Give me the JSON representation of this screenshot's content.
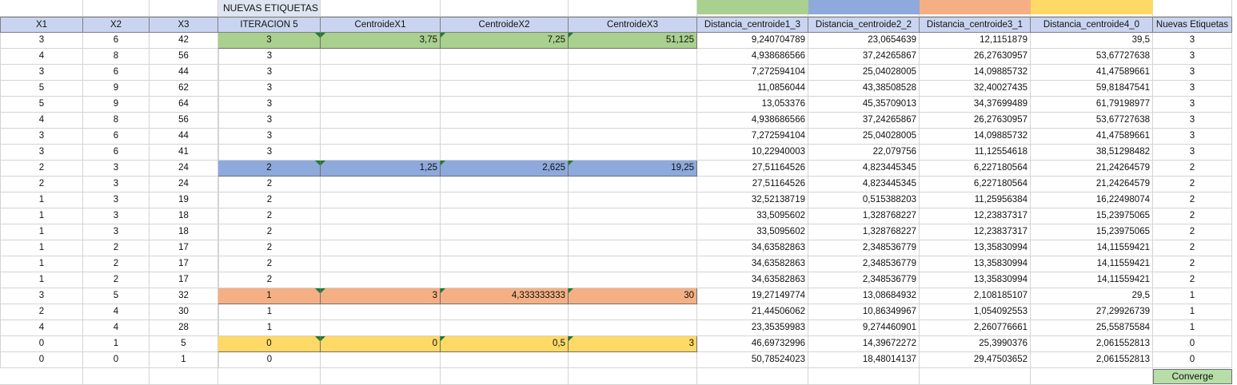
{
  "title_cell": "NUEVAS ETIQUETAS",
  "colors": {
    "cluster3": "#a9d08e",
    "cluster2": "#8ea9db",
    "cluster1": "#f4b084",
    "cluster0": "#ffd966",
    "header": "#c9d5f0",
    "converge": "#b7dea8"
  },
  "header_color_bars": [
    "#a9d08e",
    "#8ea9db",
    "#f4b084",
    "#ffd966"
  ],
  "headers": [
    "X1",
    "X2",
    "X3",
    "ITERACION 5",
    "CentroideX1",
    "CentroideX2",
    "CentroideX3",
    "Distancia_centroide1_3",
    "Distancia_centroide2_2",
    "Distancia_centroide3_1",
    "Distancia_centroide4_0",
    "Nuevas Etiquetas"
  ],
  "rows": [
    {
      "x1": "3",
      "x2": "6",
      "x3": "42",
      "iter": "3",
      "c1": "3,75",
      "c2": "7,25",
      "c3": "51,125",
      "d1": "9,240704789",
      "d2": "23,0654639",
      "d3": "12,1151879",
      "d4": "39,5",
      "label": "3",
      "hl": "cluster3"
    },
    {
      "x1": "4",
      "x2": "8",
      "x3": "56",
      "iter": "3",
      "c1": "",
      "c2": "",
      "c3": "",
      "d1": "4,938686566",
      "d2": "37,24265867",
      "d3": "26,27630957",
      "d4": "53,67727638",
      "label": "3",
      "hl": ""
    },
    {
      "x1": "3",
      "x2": "6",
      "x3": "44",
      "iter": "3",
      "c1": "",
      "c2": "",
      "c3": "",
      "d1": "7,272594104",
      "d2": "25,04028005",
      "d3": "14,09885732",
      "d4": "41,47589661",
      "label": "3",
      "hl": ""
    },
    {
      "x1": "5",
      "x2": "9",
      "x3": "62",
      "iter": "3",
      "c1": "",
      "c2": "",
      "c3": "",
      "d1": "11,0856044",
      "d2": "43,38508528",
      "d3": "32,40027435",
      "d4": "59,81847541",
      "label": "3",
      "hl": ""
    },
    {
      "x1": "5",
      "x2": "9",
      "x3": "64",
      "iter": "3",
      "c1": "",
      "c2": "",
      "c3": "",
      "d1": "13,053376",
      "d2": "45,35709013",
      "d3": "34,37699489",
      "d4": "61,79198977",
      "label": "3",
      "hl": ""
    },
    {
      "x1": "4",
      "x2": "8",
      "x3": "56",
      "iter": "3",
      "c1": "",
      "c2": "",
      "c3": "",
      "d1": "4,938686566",
      "d2": "37,24265867",
      "d3": "26,27630957",
      "d4": "53,67727638",
      "label": "3",
      "hl": ""
    },
    {
      "x1": "3",
      "x2": "6",
      "x3": "44",
      "iter": "3",
      "c1": "",
      "c2": "",
      "c3": "",
      "d1": "7,272594104",
      "d2": "25,04028005",
      "d3": "14,09885732",
      "d4": "41,47589661",
      "label": "3",
      "hl": ""
    },
    {
      "x1": "3",
      "x2": "6",
      "x3": "41",
      "iter": "3",
      "c1": "",
      "c2": "",
      "c3": "",
      "d1": "10,22940003",
      "d2": "22,079756",
      "d3": "11,12554618",
      "d4": "38,51298482",
      "label": "3",
      "hl": ""
    },
    {
      "x1": "2",
      "x2": "3",
      "x3": "24",
      "iter": "2",
      "c1": "1,25",
      "c2": "2,625",
      "c3": "19,25",
      "d1": "27,51164526",
      "d2": "4,823445345",
      "d3": "6,227180564",
      "d4": "21,24264579",
      "label": "2",
      "hl": "cluster2"
    },
    {
      "x1": "2",
      "x2": "3",
      "x3": "24",
      "iter": "2",
      "c1": "",
      "c2": "",
      "c3": "",
      "d1": "27,51164526",
      "d2": "4,823445345",
      "d3": "6,227180564",
      "d4": "21,24264579",
      "label": "2",
      "hl": ""
    },
    {
      "x1": "1",
      "x2": "3",
      "x3": "19",
      "iter": "2",
      "c1": "",
      "c2": "",
      "c3": "",
      "d1": "32,52138719",
      "d2": "0,515388203",
      "d3": "11,25956384",
      "d4": "16,22498074",
      "label": "2",
      "hl": ""
    },
    {
      "x1": "1",
      "x2": "3",
      "x3": "18",
      "iter": "2",
      "c1": "",
      "c2": "",
      "c3": "",
      "d1": "33,5095602",
      "d2": "1,328768227",
      "d3": "12,23837317",
      "d4": "15,23975065",
      "label": "2",
      "hl": ""
    },
    {
      "x1": "1",
      "x2": "3",
      "x3": "18",
      "iter": "2",
      "c1": "",
      "c2": "",
      "c3": "",
      "d1": "33,5095602",
      "d2": "1,328768227",
      "d3": "12,23837317",
      "d4": "15,23975065",
      "label": "2",
      "hl": ""
    },
    {
      "x1": "1",
      "x2": "2",
      "x3": "17",
      "iter": "2",
      "c1": "",
      "c2": "",
      "c3": "",
      "d1": "34,63582863",
      "d2": "2,348536779",
      "d3": "13,35830994",
      "d4": "14,11559421",
      "label": "2",
      "hl": ""
    },
    {
      "x1": "1",
      "x2": "2",
      "x3": "17",
      "iter": "2",
      "c1": "",
      "c2": "",
      "c3": "",
      "d1": "34,63582863",
      "d2": "2,348536779",
      "d3": "13,35830994",
      "d4": "14,11559421",
      "label": "2",
      "hl": ""
    },
    {
      "x1": "1",
      "x2": "2",
      "x3": "17",
      "iter": "2",
      "c1": "",
      "c2": "",
      "c3": "",
      "d1": "34,63582863",
      "d2": "2,348536779",
      "d3": "13,35830994",
      "d4": "14,11559421",
      "label": "2",
      "hl": ""
    },
    {
      "x1": "3",
      "x2": "5",
      "x3": "32",
      "iter": "1",
      "c1": "3",
      "c2": "4,333333333",
      "c3": "30",
      "d1": "19,27149774",
      "d2": "13,08684932",
      "d3": "2,108185107",
      "d4": "29,5",
      "label": "1",
      "hl": "cluster1"
    },
    {
      "x1": "2",
      "x2": "4",
      "x3": "30",
      "iter": "1",
      "c1": "",
      "c2": "",
      "c3": "",
      "d1": "21,44506062",
      "d2": "10,86349967",
      "d3": "1,054092553",
      "d4": "27,29926739",
      "label": "1",
      "hl": ""
    },
    {
      "x1": "4",
      "x2": "4",
      "x3": "28",
      "iter": "1",
      "c1": "",
      "c2": "",
      "c3": "",
      "d1": "23,35359983",
      "d2": "9,274460901",
      "d3": "2,260776661",
      "d4": "25,55875584",
      "label": "1",
      "hl": ""
    },
    {
      "x1": "0",
      "x2": "1",
      "x3": "5",
      "iter": "0",
      "c1": "0",
      "c2": "0,5",
      "c3": "3",
      "d1": "46,69732996",
      "d2": "14,39672272",
      "d3": "25,3990376",
      "d4": "2,061552813",
      "label": "0",
      "hl": "cluster0"
    },
    {
      "x1": "0",
      "x2": "0",
      "x3": "1",
      "iter": "0",
      "c1": "",
      "c2": "",
      "c3": "",
      "d1": "50,78524023",
      "d2": "18,48014137",
      "d3": "29,47503652",
      "d4": "2,061552813",
      "label": "0",
      "hl": ""
    }
  ],
  "converge_label": "Converge"
}
